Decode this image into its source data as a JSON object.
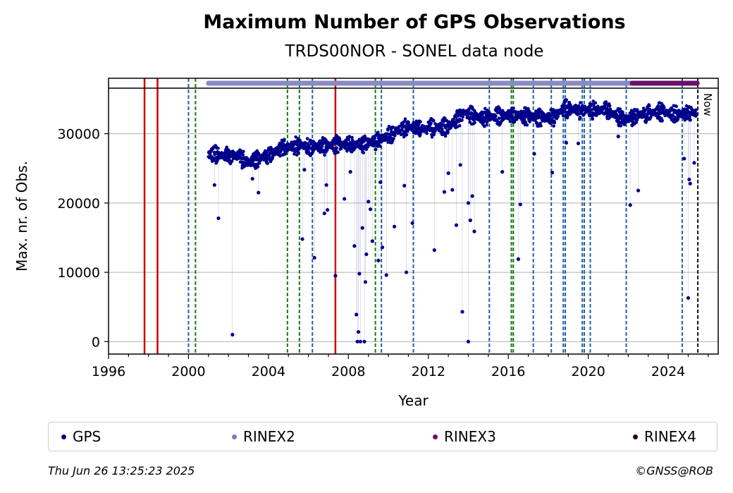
{
  "header": {
    "title": "Maximum Number of GPS Observations",
    "subtitle": "TRDS00NOR - SONEL data node"
  },
  "legend": [
    {
      "label": "GPS",
      "color": "#00008b"
    },
    {
      "label": "RINEX2",
      "color": "#7b7bbd"
    },
    {
      "label": "RINEX3",
      "color": "#6b0f6b"
    },
    {
      "label": "RINEX4",
      "color": "#2a0015"
    }
  ],
  "footer": {
    "timestamp": "Thu Jun 26 13:25:23 2025",
    "copyright": "©GNSS@ROB"
  },
  "chart_data": {
    "type": "scatter",
    "xlabel": "Year",
    "ylabel": "Max. nr. of Obs.",
    "xlim": [
      1996,
      2026.5
    ],
    "ylim": [
      -1800,
      38000
    ],
    "xticks": [
      1996,
      2000,
      2004,
      2008,
      2012,
      2016,
      2020,
      2024
    ],
    "yticks": [
      0,
      10000,
      20000,
      30000
    ],
    "grid": "horizontal",
    "now_label": "Now",
    "now_x": 2025.48,
    "red_lines": [
      1997.8,
      1998.45,
      2007.35
    ],
    "green_lines": [
      2000.35,
      2004.95,
      2005.55,
      2009.35,
      2016.15,
      2016.25
    ],
    "blue_lines": [
      2000.0,
      2006.2,
      2009.65,
      2011.25,
      2015.05,
      2017.25,
      2018.15,
      2018.75,
      2018.85,
      2019.7,
      2019.8,
      2020.1,
      2021.9,
      2024.7
    ],
    "rinex2_span": [
      2001.0,
      2022.2
    ],
    "rinex3_span": [
      2022.2,
      2025.45
    ],
    "series": [
      {
        "name": "GPS",
        "trend": [
          [
            2001.0,
            27000
          ],
          [
            2002.5,
            26800
          ],
          [
            2003.0,
            25800
          ],
          [
            2004.0,
            27000
          ],
          [
            2004.8,
            28000
          ],
          [
            2005.5,
            28300
          ],
          [
            2006.5,
            28100
          ],
          [
            2007.5,
            28400
          ],
          [
            2008.5,
            28500
          ],
          [
            2009.5,
            29000
          ],
          [
            2010.5,
            30500
          ],
          [
            2011.0,
            31000
          ],
          [
            2011.8,
            30700
          ],
          [
            2013.0,
            31000
          ],
          [
            2013.8,
            33000
          ],
          [
            2014.5,
            32300
          ],
          [
            2015.5,
            32600
          ],
          [
            2016.5,
            32700
          ],
          [
            2017.5,
            32300
          ],
          [
            2018.2,
            32300
          ],
          [
            2018.8,
            33600
          ],
          [
            2020.0,
            33400
          ],
          [
            2021.0,
            33300
          ],
          [
            2021.8,
            32000
          ],
          [
            2022.5,
            32700
          ],
          [
            2023.5,
            33200
          ],
          [
            2024.5,
            32800
          ],
          [
            2025.4,
            33000
          ]
        ],
        "outliers": [
          [
            2001.3,
            22600
          ],
          [
            2001.5,
            17800
          ],
          [
            2002.2,
            1000
          ],
          [
            2003.2,
            23500
          ],
          [
            2003.5,
            21500
          ],
          [
            2005.7,
            14800
          ],
          [
            2005.8,
            24800
          ],
          [
            2006.3,
            12100
          ],
          [
            2006.8,
            18500
          ],
          [
            2006.9,
            22600
          ],
          [
            2006.95,
            19000
          ],
          [
            2007.35,
            9500
          ],
          [
            2007.8,
            20600
          ],
          [
            2008.1,
            24500
          ],
          [
            2008.3,
            13800
          ],
          [
            2008.4,
            3900
          ],
          [
            2008.45,
            0
          ],
          [
            2008.5,
            1400
          ],
          [
            2008.55,
            9800
          ],
          [
            2008.6,
            0
          ],
          [
            2008.7,
            16400
          ],
          [
            2008.8,
            0
          ],
          [
            2008.85,
            8600
          ],
          [
            2008.9,
            12600
          ],
          [
            2009.0,
            20200
          ],
          [
            2009.1,
            19100
          ],
          [
            2009.2,
            14500
          ],
          [
            2009.5,
            11700
          ],
          [
            2009.6,
            23000
          ],
          [
            2009.7,
            13600
          ],
          [
            2009.9,
            9600
          ],
          [
            2010.3,
            16600
          ],
          [
            2010.8,
            22500
          ],
          [
            2010.9,
            10000
          ],
          [
            2011.2,
            17100
          ],
          [
            2012.3,
            13200
          ],
          [
            2012.8,
            21600
          ],
          [
            2013.0,
            24300
          ],
          [
            2013.2,
            21900
          ],
          [
            2013.4,
            16800
          ],
          [
            2013.6,
            25500
          ],
          [
            2013.7,
            4300
          ],
          [
            2014.0,
            0
          ],
          [
            2014.0,
            20000
          ],
          [
            2014.1,
            17500
          ],
          [
            2014.3,
            15900
          ],
          [
            2014.2,
            21000
          ],
          [
            2015.7,
            24500
          ],
          [
            2016.5,
            11900
          ],
          [
            2016.6,
            19800
          ],
          [
            2017.3,
            27100
          ],
          [
            2018.2,
            24400
          ],
          [
            2018.9,
            28700
          ],
          [
            2019.5,
            28600
          ],
          [
            2021.5,
            29600
          ],
          [
            2022.1,
            19700
          ],
          [
            2022.5,
            21800
          ],
          [
            2024.8,
            26400
          ],
          [
            2025.0,
            6300
          ],
          [
            2025.05,
            23400
          ],
          [
            2025.1,
            22800
          ],
          [
            2025.3,
            25800
          ]
        ]
      }
    ]
  }
}
